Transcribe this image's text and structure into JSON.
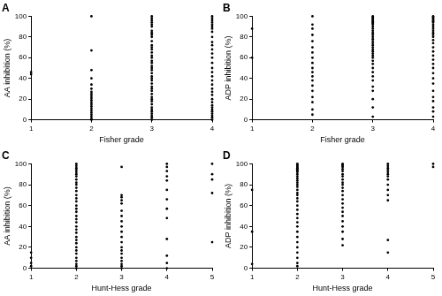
{
  "chart_data": [
    {
      "type": "scatter",
      "title": "A",
      "x_label": "Fisher grade",
      "y_label": "AA inhibition (%)",
      "color": "#000000",
      "marker": "circle",
      "grid": false,
      "xlim": [
        1,
        4
      ],
      "xticks": [
        1,
        2,
        3,
        4
      ],
      "ylim": [
        0,
        100
      ],
      "yticks": [
        0,
        20,
        40,
        60,
        80,
        100
      ],
      "x": [
        1,
        1,
        2,
        2,
        2,
        2,
        2,
        2,
        2,
        2,
        2,
        2,
        2,
        2,
        2,
        2,
        2,
        2,
        2,
        2,
        2,
        2,
        2,
        3,
        3,
        3,
        3,
        3,
        3,
        3,
        3,
        3,
        3,
        3,
        3,
        3,
        3,
        3,
        3,
        3,
        3,
        3,
        3,
        3,
        3,
        3,
        3,
        3,
        3,
        3,
        3,
        3,
        3,
        3,
        3,
        3,
        3,
        3,
        3,
        3,
        3,
        3,
        3,
        3,
        3,
        4,
        4,
        4,
        4,
        4,
        4,
        4,
        4,
        4,
        4,
        4,
        4,
        4,
        4,
        4,
        4,
        4,
        4,
        4,
        4,
        4,
        4,
        4,
        4,
        4,
        4,
        4,
        4,
        4,
        4,
        4,
        4,
        4
      ],
      "values": [
        46,
        44,
        100,
        67,
        48,
        40,
        34,
        30,
        27,
        25,
        23,
        21,
        19,
        17,
        15,
        13,
        11,
        9,
        7,
        5,
        3,
        1,
        0,
        100,
        98,
        96,
        94,
        92,
        90,
        86,
        84,
        82,
        80,
        76,
        72,
        70,
        68,
        65,
        62,
        60,
        57,
        55,
        52,
        50,
        48,
        45,
        42,
        40,
        38,
        35,
        32,
        30,
        28,
        25,
        22,
        20,
        18,
        15,
        12,
        10,
        8,
        6,
        4,
        2,
        0,
        100,
        98,
        96,
        94,
        92,
        90,
        88,
        85,
        80,
        75,
        72,
        68,
        64,
        60,
        55,
        50,
        46,
        42,
        38,
        34,
        30,
        27,
        24,
        20,
        17,
        14,
        12,
        10,
        8,
        6,
        4,
        2,
        0
      ]
    },
    {
      "type": "scatter",
      "title": "B",
      "x_label": "Fisher grade",
      "y_label": "ADP inhibition (%)",
      "color": "#000000",
      "marker": "circle",
      "grid": false,
      "xlim": [
        1,
        4
      ],
      "xticks": [
        1,
        2,
        3,
        4
      ],
      "ylim": [
        0,
        100
      ],
      "yticks": [
        0,
        20,
        40,
        60,
        80,
        100
      ],
      "x": [
        1,
        1,
        2,
        2,
        2,
        2,
        2,
        2,
        2,
        2,
        2,
        2,
        2,
        2,
        2,
        2,
        2,
        2,
        2,
        2,
        2,
        3,
        3,
        3,
        3,
        3,
        3,
        3,
        3,
        3,
        3,
        3,
        3,
        3,
        3,
        3,
        3,
        3,
        3,
        3,
        3,
        3,
        3,
        3,
        3,
        3,
        3,
        3,
        3,
        3,
        3,
        3,
        3,
        3,
        3,
        3,
        3,
        4,
        4,
        4,
        4,
        4,
        4,
        4,
        4,
        4,
        4,
        4,
        4,
        4,
        4,
        4,
        4,
        4,
        4,
        4,
        4,
        4,
        4,
        4,
        4,
        4,
        4,
        4,
        4,
        4,
        4,
        4
      ],
      "values": [
        88,
        60,
        100,
        92,
        88,
        82,
        76,
        70,
        65,
        60,
        55,
        50,
        46,
        42,
        38,
        33,
        28,
        22,
        17,
        10,
        5,
        100,
        99,
        98,
        97,
        96,
        95,
        94,
        93,
        92,
        90,
        88,
        86,
        84,
        82,
        80,
        78,
        76,
        74,
        72,
        70,
        68,
        66,
        64,
        62,
        60,
        57,
        54,
        50,
        46,
        42,
        38,
        32,
        28,
        20,
        12,
        3,
        100,
        99,
        98,
        97,
        96,
        95,
        94,
        92,
        90,
        88,
        86,
        84,
        82,
        80,
        77,
        74,
        70,
        66,
        62,
        58,
        54,
        50,
        45,
        40,
        35,
        28,
        22,
        18,
        12,
        8,
        3
      ]
    },
    {
      "type": "scatter",
      "title": "C",
      "x_label": "Hunt-Hess grade",
      "y_label": "AA inhibition (%)",
      "color": "#000000",
      "marker": "circle",
      "grid": false,
      "xlim": [
        1,
        5
      ],
      "xticks": [
        1,
        2,
        3,
        4,
        5
      ],
      "ylim": [
        0,
        100
      ],
      "yticks": [
        0,
        20,
        40,
        60,
        80,
        100
      ],
      "x": [
        1,
        1,
        1,
        1,
        2,
        2,
        2,
        2,
        2,
        2,
        2,
        2,
        2,
        2,
        2,
        2,
        2,
        2,
        2,
        2,
        2,
        2,
        2,
        2,
        2,
        2,
        2,
        2,
        2,
        2,
        2,
        2,
        2,
        2,
        2,
        2,
        2,
        2,
        2,
        3,
        3,
        3,
        3,
        3,
        3,
        3,
        3,
        3,
        3,
        3,
        3,
        3,
        3,
        3,
        3,
        3,
        3,
        3,
        3,
        4,
        4,
        4,
        4,
        4,
        4,
        4,
        4,
        4,
        4,
        4,
        4,
        4,
        5,
        5,
        5,
        5,
        5
      ],
      "values": [
        15,
        10,
        5,
        2,
        100,
        98,
        96,
        94,
        92,
        90,
        88,
        85,
        82,
        80,
        77,
        74,
        70,
        67,
        64,
        60,
        57,
        54,
        50,
        47,
        44,
        40,
        37,
        34,
        30,
        27,
        24,
        20,
        17,
        14,
        10,
        7,
        4,
        2,
        0,
        97,
        70,
        68,
        65,
        62,
        55,
        50,
        45,
        40,
        35,
        30,
        25,
        20,
        17,
        14,
        10,
        7,
        4,
        2,
        0,
        100,
        97,
        93,
        88,
        84,
        75,
        66,
        57,
        48,
        28,
        12,
        5,
        0,
        100,
        90,
        85,
        72,
        25
      ]
    },
    {
      "type": "scatter",
      "title": "D",
      "x_label": "Hunt-Hess grade",
      "y_label": "ADP inhibition (%)",
      "color": "#000000",
      "marker": "circle",
      "grid": false,
      "xlim": [
        1,
        5
      ],
      "xticks": [
        1,
        2,
        3,
        4,
        5
      ],
      "ylim": [
        0,
        100
      ],
      "yticks": [
        0,
        20,
        40,
        60,
        80,
        100
      ],
      "x": [
        1,
        1,
        1,
        2,
        2,
        2,
        2,
        2,
        2,
        2,
        2,
        2,
        2,
        2,
        2,
        2,
        2,
        2,
        2,
        2,
        2,
        2,
        2,
        2,
        2,
        2,
        2,
        2,
        2,
        2,
        2,
        2,
        2,
        2,
        2,
        2,
        2,
        2,
        3,
        3,
        3,
        3,
        3,
        3,
        3,
        3,
        3,
        3,
        3,
        3,
        3,
        3,
        3,
        3,
        3,
        3,
        3,
        3,
        3,
        3,
        3,
        3,
        4,
        4,
        4,
        4,
        4,
        4,
        4,
        4,
        4,
        4,
        4,
        4,
        4,
        4,
        5,
        5
      ],
      "values": [
        75,
        35,
        4,
        100,
        99,
        98,
        97,
        96,
        95,
        94,
        93,
        92,
        90,
        88,
        86,
        84,
        82,
        80,
        78,
        75,
        72,
        70,
        67,
        64,
        60,
        56,
        52,
        48,
        44,
        40,
        35,
        30,
        25,
        20,
        15,
        10,
        5,
        2,
        100,
        99,
        98,
        97,
        95,
        93,
        90,
        88,
        85,
        82,
        80,
        77,
        74,
        70,
        66,
        62,
        58,
        54,
        50,
        45,
        40,
        35,
        28,
        22,
        100,
        98,
        96,
        94,
        92,
        90,
        88,
        85,
        80,
        75,
        70,
        65,
        27,
        15,
        100,
        97
      ]
    }
  ]
}
